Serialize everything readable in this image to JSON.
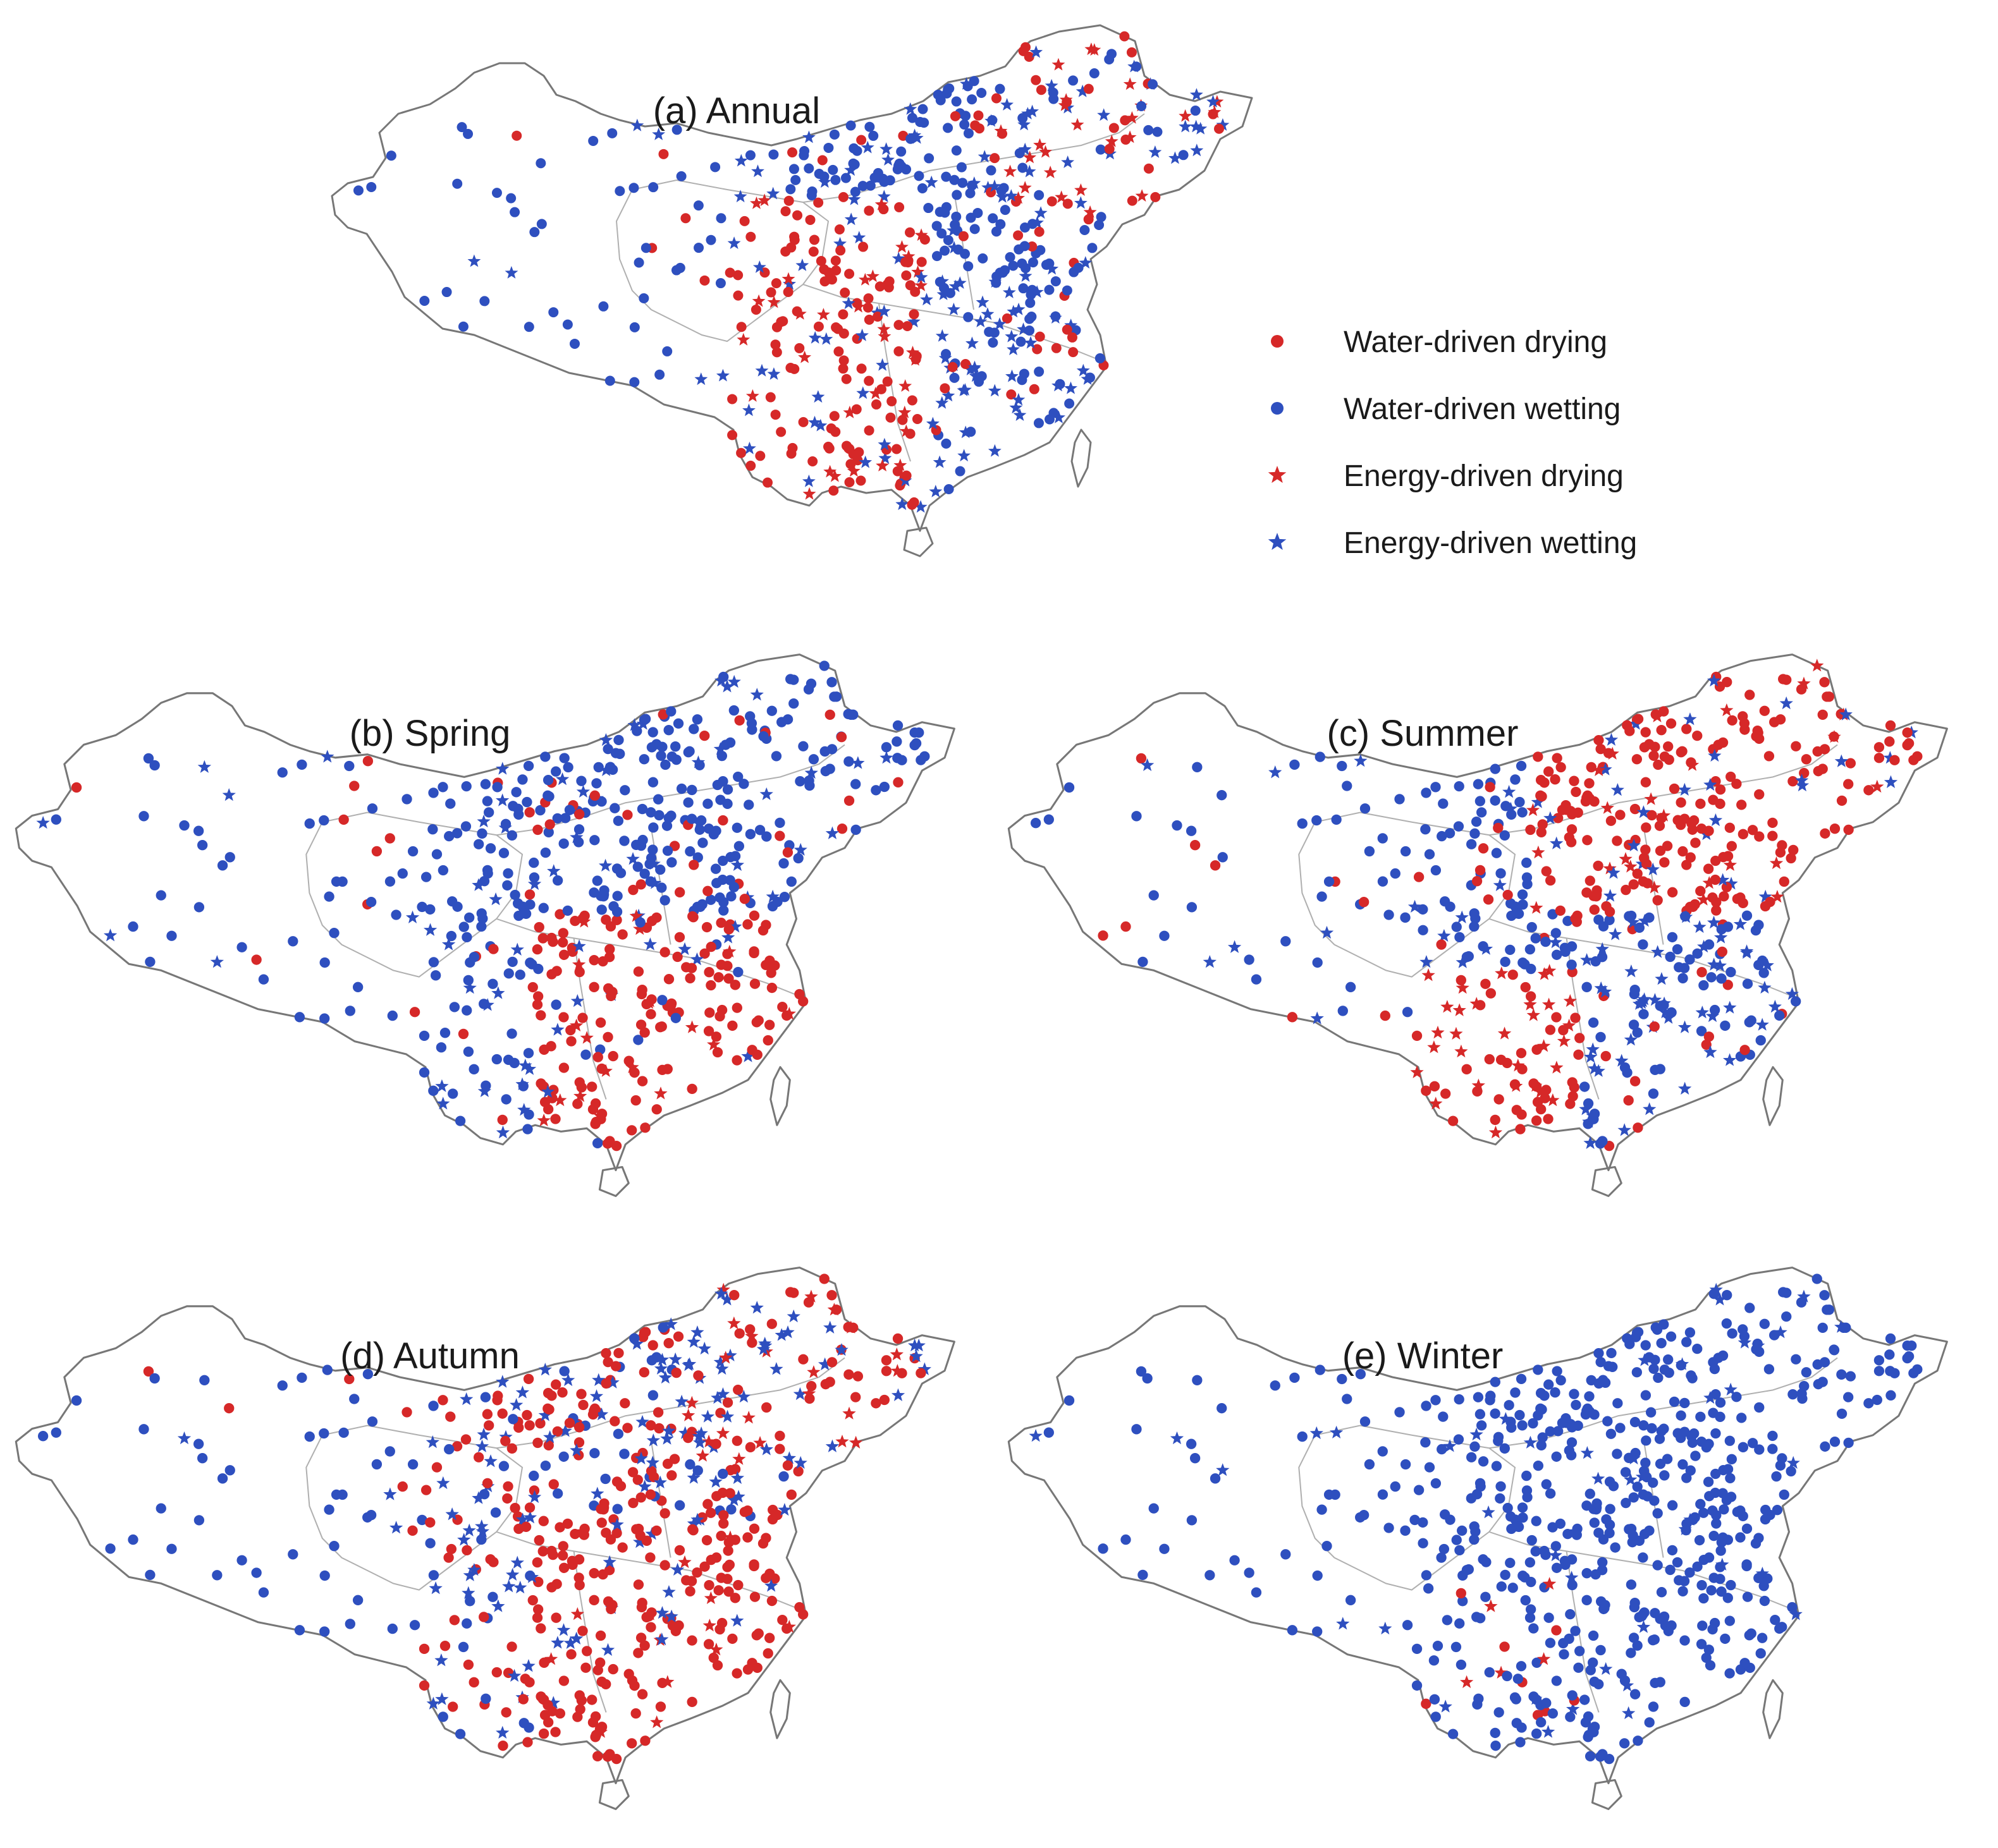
{
  "figure": {
    "colors": {
      "drying": "#d62828",
      "wetting": "#2e4fbf",
      "outline": "#777777"
    },
    "legend": [
      {
        "label": "Water-driven drying",
        "marker": "circle",
        "color": "#d62828"
      },
      {
        "label": "Water-driven wetting",
        "marker": "circle",
        "color": "#2e4fbf"
      },
      {
        "label": "Energy-driven drying",
        "marker": "star",
        "color": "#d62828"
      },
      {
        "label": "Energy-driven wetting",
        "marker": "star",
        "color": "#2e4fbf"
      }
    ],
    "panels": [
      {
        "id": "annual",
        "title": "(a) Annual"
      },
      {
        "id": "spring",
        "title": "(b) Spring"
      },
      {
        "id": "summer",
        "title": "(c) Summer"
      },
      {
        "id": "autumn",
        "title": "(d) Autumn"
      },
      {
        "id": "winter",
        "title": "(e) Winter"
      }
    ]
  }
}
